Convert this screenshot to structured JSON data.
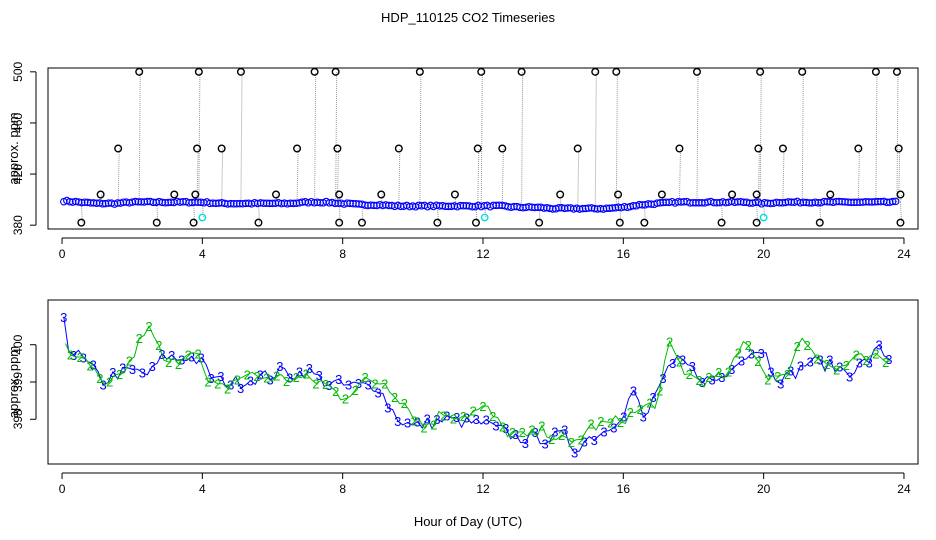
{
  "title": "HDP_110125  CO2 Timeseries",
  "xlabel": "Hour of Day (UTC)",
  "chart_data": [
    {
      "type": "scatter",
      "panel": "top",
      "ylabel": "approx. ppm",
      "xlim": [
        -0.4,
        24.4
      ],
      "ylim": [
        377,
        503
      ],
      "xticks": [
        0,
        4,
        8,
        12,
        16,
        20,
        24
      ],
      "yticks": [
        380,
        420,
        460,
        500
      ],
      "yticklabels": [
        "380",
        "420",
        "460",
        "500"
      ],
      "baseline": {
        "description": "dense blue circle markers joined by light grey dotted line",
        "x": [
          0.05,
          0.5,
          1,
          1.5,
          2,
          2.5,
          3,
          3.5,
          4,
          4.5,
          5,
          5.5,
          6,
          6.5,
          7,
          7.5,
          8,
          8.5,
          9,
          9.5,
          10,
          10.5,
          11,
          11.5,
          12,
          12.5,
          13,
          13.5,
          14,
          14.5,
          15,
          15.5,
          16,
          16.5,
          17,
          17.5,
          18,
          18.5,
          19,
          19.5,
          20,
          20.5,
          21,
          21.5,
          22,
          22.5,
          23,
          23.5,
          23.8
        ],
        "y": [
          399,
          398,
          397,
          397,
          398,
          398,
          398,
          398,
          398,
          397,
          397,
          397,
          397,
          397,
          398,
          398,
          397,
          396,
          396,
          395,
          395,
          395,
          395,
          395,
          395,
          395,
          394,
          394,
          393,
          393,
          393,
          393,
          394,
          396,
          397,
          398,
          398,
          398,
          398,
          398,
          397,
          398,
          398,
          398,
          398,
          398,
          398,
          398,
          398
        ]
      },
      "outliers_high": {
        "marker": "black open circle",
        "x": [
          2.2,
          3.9,
          5.1,
          7.2,
          7.8,
          10.2,
          11.95,
          13.1,
          15.2,
          15.8,
          18.1,
          19.9,
          21.1,
          23.2,
          23.8,
          1.6,
          3.85,
          4.55,
          6.7,
          7.85,
          9.6,
          11.85,
          12.55,
          14.7,
          17.6,
          19.85,
          20.55,
          22.7,
          23.85,
          1.1,
          3.2,
          3.8,
          6.1,
          7.9,
          9.1,
          11.2,
          14.2,
          15.85,
          17.1,
          19.1,
          19.8,
          21.9,
          23.9
        ],
        "y": [
          500,
          500,
          500,
          500,
          500,
          500,
          500,
          500,
          500,
          500,
          500,
          500,
          500,
          500,
          500,
          440,
          440,
          440,
          440,
          440,
          440,
          440,
          440,
          440,
          440,
          440,
          440,
          440,
          440,
          404,
          404,
          404,
          404,
          404,
          404,
          404,
          404,
          404,
          404,
          404,
          404,
          404,
          404
        ]
      },
      "outliers_low": {
        "marker": "black open circle",
        "x": [
          0.55,
          2.7,
          3.75,
          5.6,
          7.9,
          8.55,
          10.7,
          11.8,
          13.6,
          15.9,
          16.6,
          18.8,
          19.8,
          21.6,
          23.9
        ],
        "y": [
          382,
          382,
          382,
          382,
          382,
          382,
          382,
          382,
          382,
          382,
          382,
          382,
          382,
          382,
          382
        ]
      },
      "calibration_points": {
        "marker": "cyan circle",
        "x": [
          4.0,
          12.05,
          20.0
        ],
        "y": [
          386,
          386,
          386
        ]
      }
    },
    {
      "type": "line",
      "panel": "bottom",
      "ylabel": "approx. ppm",
      "xlim": [
        -0.4,
        24.4
      ],
      "ylim": [
        396.8,
        401.2
      ],
      "xticks": [
        0,
        4,
        8,
        12,
        16,
        20,
        24
      ],
      "yticks": [
        398,
        399,
        400
      ],
      "yticklabels": [
        "398",
        "399",
        "400"
      ],
      "series": [
        {
          "name": "3",
          "color": "#0000ff",
          "x": [
            0.05,
            0.1,
            0.3,
            0.5,
            0.8,
            1,
            1.2,
            1.5,
            2,
            2.5,
            2.8,
            3,
            3.3,
            3.6,
            4,
            4.3,
            4.6,
            5,
            5.5,
            6,
            6.3,
            6.6,
            7,
            7.5,
            8,
            8.5,
            9,
            9.3,
            9.6,
            10,
            10.5,
            11,
            11.5,
            12,
            12.5,
            13,
            13.5,
            14,
            14.3,
            14.6,
            15,
            15.5,
            16,
            16.3,
            16.6,
            17,
            17.3,
            17.6,
            18,
            18.5,
            19,
            19.3,
            19.6,
            20,
            20.3,
            20.6,
            21,
            21.3,
            21.6,
            22,
            22.5,
            23,
            23.3,
            23.6
          ],
          "values": [
            400.8,
            400.1,
            399.8,
            399.7,
            399.4,
            399.2,
            399.0,
            399.2,
            399.3,
            399.2,
            399.6,
            399.7,
            399.6,
            399.7,
            399.5,
            399.1,
            399.0,
            399.0,
            399.1,
            399.2,
            399.3,
            399.2,
            399.3,
            399.0,
            398.9,
            398.9,
            398.9,
            398.4,
            398.0,
            397.8,
            397.9,
            398.0,
            397.9,
            397.9,
            397.7,
            397.5,
            397.5,
            397.5,
            397.6,
            397.2,
            397.5,
            397.7,
            398.2,
            398.8,
            397.9,
            398.9,
            399.3,
            399.6,
            399.3,
            399.0,
            399.2,
            399.7,
            399.8,
            399.9,
            399.2,
            399.1,
            399.3,
            399.6,
            399.5,
            399.4,
            399.3,
            399.6,
            399.9,
            399.6
          ]
        },
        {
          "name": "2",
          "color": "#00bb00",
          "x": [
            0.1,
            0.4,
            0.7,
            1.2,
            1.6,
            2.0,
            2.4,
            2.6,
            3.0,
            3.8,
            4.1,
            4.5,
            5.2,
            6.0,
            6.8,
            7.4,
            8.0,
            8.6,
            9.2,
            9.8,
            10.3,
            10.9,
            11.4,
            12.1,
            12.6,
            13.2,
            13.8,
            14.5,
            15.1,
            15.7,
            16.4,
            17.0,
            17.3,
            17.8,
            18.4,
            19.0,
            19.5,
            20.0,
            20.5,
            21.1,
            21.4,
            22.0,
            22.6,
            23.0,
            23.4,
            23.7
          ],
          "values": [
            400.1,
            399.5,
            399.6,
            398.8,
            399.1,
            399.6,
            400.5,
            400.2,
            399.4,
            400.0,
            399.0,
            398.8,
            399.2,
            399.1,
            399.1,
            399.0,
            398.6,
            399.0,
            399.0,
            398.4,
            397.8,
            398.2,
            398.1,
            398.3,
            397.7,
            397.5,
            397.7,
            397.3,
            397.8,
            397.9,
            398.2,
            398.5,
            400.0,
            399.2,
            399.0,
            399.2,
            400.2,
            399.3,
            399.0,
            400.2,
            399.9,
            399.3,
            399.6,
            399.6,
            399.6,
            399.5
          ]
        }
      ]
    }
  ]
}
